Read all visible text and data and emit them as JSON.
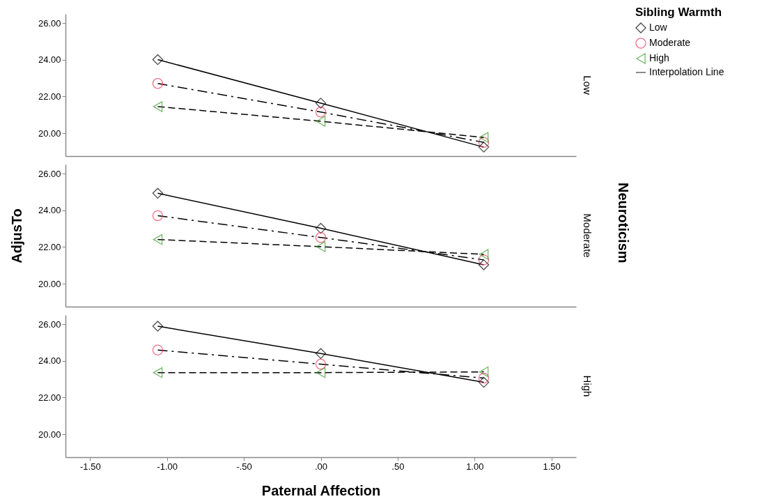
{
  "chart_data": [
    {
      "type": "line",
      "title": "Low",
      "legend_title": "Sibling Warmth",
      "legend": "right",
      "annotations": [
        "Interpolation Line"
      ],
      "x": [
        -1.06,
        0,
        1.06
      ],
      "xlim": [
        -1.66,
        1.66
      ],
      "ylim": [
        18.75,
        26.5
      ],
      "tick_labels": "y",
      "grid": false,
      "yticks": [
        {
          "value": 20,
          "label": "20.00"
        },
        {
          "value": 22,
          "label": "22.00"
        },
        {
          "value": 24,
          "label": "24.00"
        },
        {
          "value": 26,
          "label": "26.00"
        }
      ],
      "series": [
        {
          "name": "Low",
          "color": "#000000",
          "marker": "diamond",
          "line_style": "solid",
          "values": [
            24.01,
            21.64,
            19.24
          ]
        },
        {
          "name": "Moderate",
          "color": "#e8365a",
          "marker": "circle",
          "line_style": "dashdot",
          "values": [
            22.71,
            21.15,
            19.5
          ]
        },
        {
          "name": "High",
          "color": "#3b9a2a",
          "marker": "triangle",
          "line_style": "dashed",
          "values": [
            21.45,
            20.65,
            19.77
          ]
        }
      ]
    },
    {
      "type": "line",
      "title": "Moderate",
      "ylabel": "AdjusTo",
      "annotations": [
        "Neuroticism"
      ],
      "x": [
        -1.06,
        0,
        1.06
      ],
      "xlim": [
        -1.66,
        1.66
      ],
      "ylim": [
        18.75,
        26.5
      ],
      "tick_labels": "y",
      "grid": false,
      "yticks": [
        {
          "value": 20,
          "label": "20.00"
        },
        {
          "value": 22,
          "label": "22.00"
        },
        {
          "value": 24,
          "label": "24.00"
        },
        {
          "value": 26,
          "label": "26.00"
        }
      ],
      "series": [
        {
          "color": "#000000",
          "marker": "diamond",
          "line_style": "solid",
          "values": [
            24.93,
            23.02,
            21.03
          ]
        },
        {
          "color": "#e8365a",
          "marker": "circle",
          "line_style": "dashdot",
          "values": [
            23.71,
            22.52,
            21.3
          ]
        },
        {
          "color": "#3b9a2a",
          "marker": "triangle",
          "line_style": "dashed",
          "values": [
            22.41,
            22.02,
            21.6
          ]
        }
      ]
    },
    {
      "type": "line",
      "title": "High",
      "xlabel": "Paternal Affection",
      "x": [
        -1.06,
        0,
        1.06
      ],
      "xlim": [
        -1.66,
        1.66
      ],
      "ylim": [
        18.75,
        26.5
      ],
      "grid": false,
      "xticks": [
        {
          "value": -1.5,
          "label": "-1.50"
        },
        {
          "value": -1,
          "label": "-1.00"
        },
        {
          "value": -0.5,
          "label": "-.50"
        },
        {
          "value": 0,
          "label": ".00"
        },
        {
          "value": 0.5,
          "label": ".50"
        },
        {
          "value": 1,
          "label": "1.00"
        },
        {
          "value": 1.5,
          "label": "1.50"
        }
      ],
      "yticks": [
        {
          "value": 20,
          "label": "20.00"
        },
        {
          "value": 22,
          "label": "22.00"
        },
        {
          "value": 24,
          "label": "24.00"
        },
        {
          "value": 26,
          "label": "26.00"
        }
      ],
      "series": [
        {
          "color": "#000000",
          "marker": "diamond",
          "line_style": "solid",
          "values": [
            25.89,
            24.4,
            22.83
          ]
        },
        {
          "color": "#e8365a",
          "marker": "circle",
          "line_style": "dashdot",
          "values": [
            24.59,
            23.82,
            23.06
          ]
        },
        {
          "color": "#3b9a2a",
          "marker": "triangle",
          "line_style": "dashed",
          "values": [
            23.36,
            23.36,
            23.4
          ]
        }
      ]
    }
  ]
}
